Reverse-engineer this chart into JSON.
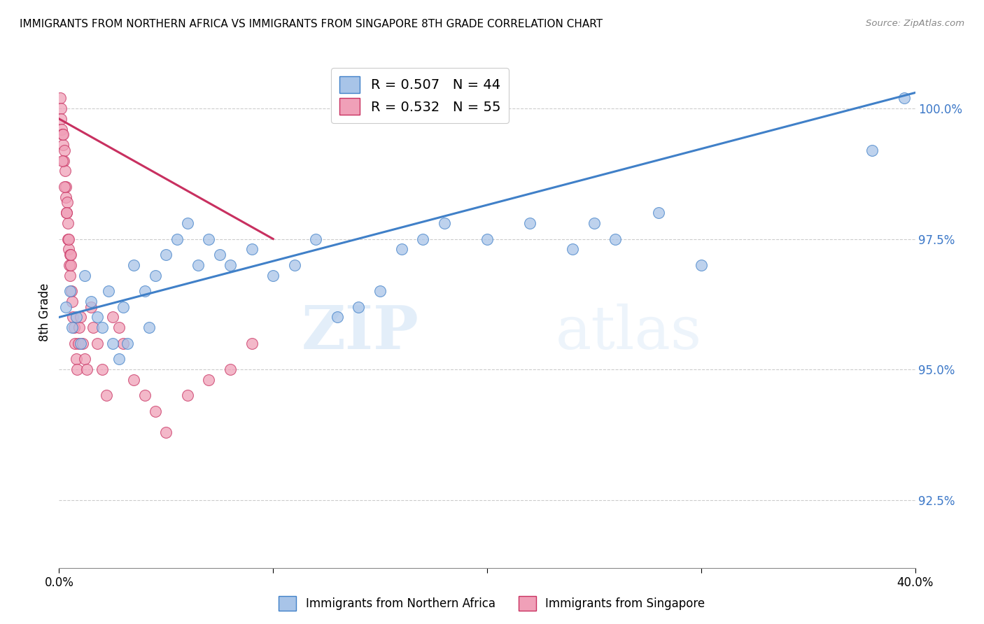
{
  "title": "IMMIGRANTS FROM NORTHERN AFRICA VS IMMIGRANTS FROM SINGAPORE 8TH GRADE CORRELATION CHART",
  "source": "Source: ZipAtlas.com",
  "ylabel": "8th Grade",
  "y_ticks": [
    92.5,
    95.0,
    97.5,
    100.0
  ],
  "y_tick_labels": [
    "92.5%",
    "95.0%",
    "97.5%",
    "100.0%"
  ],
  "x_min": 0.0,
  "x_max": 40.0,
  "y_min": 91.2,
  "y_max": 101.0,
  "legend_blue_label": "Immigrants from Northern Africa",
  "legend_pink_label": "Immigrants from Singapore",
  "blue_color": "#A8C4E8",
  "pink_color": "#F0A0B8",
  "blue_line_color": "#4080C8",
  "pink_line_color": "#C83060",
  "blue_line_x": [
    0.0,
    40.0
  ],
  "blue_line_y": [
    96.0,
    100.3
  ],
  "pink_line_x": [
    0.0,
    10.0
  ],
  "pink_line_y": [
    99.8,
    97.5
  ],
  "blue_scatter_x": [
    0.3,
    0.5,
    0.6,
    0.8,
    1.0,
    1.2,
    1.5,
    1.8,
    2.0,
    2.3,
    2.5,
    3.0,
    3.5,
    4.0,
    4.5,
    5.0,
    5.5,
    6.0,
    6.5,
    7.0,
    7.5,
    8.0,
    9.0,
    10.0,
    11.0,
    12.0,
    13.0,
    14.0,
    15.0,
    16.0,
    17.0,
    18.0,
    20.0,
    22.0,
    24.0,
    25.0,
    26.0,
    28.0,
    30.0,
    38.0,
    39.5,
    2.8,
    3.2,
    4.2
  ],
  "blue_scatter_y": [
    96.2,
    96.5,
    95.8,
    96.0,
    95.5,
    96.8,
    96.3,
    96.0,
    95.8,
    96.5,
    95.5,
    96.2,
    97.0,
    96.5,
    96.8,
    97.2,
    97.5,
    97.8,
    97.0,
    97.5,
    97.2,
    97.0,
    97.3,
    96.8,
    97.0,
    97.5,
    96.0,
    96.2,
    96.5,
    97.3,
    97.5,
    97.8,
    97.5,
    97.8,
    97.3,
    97.8,
    97.5,
    98.0,
    97.0,
    99.2,
    100.2,
    95.2,
    95.5,
    95.8
  ],
  "pink_scatter_x": [
    0.05,
    0.08,
    0.1,
    0.12,
    0.15,
    0.18,
    0.2,
    0.22,
    0.25,
    0.28,
    0.3,
    0.32,
    0.35,
    0.38,
    0.4,
    0.42,
    0.45,
    0.48,
    0.5,
    0.52,
    0.55,
    0.58,
    0.6,
    0.65,
    0.7,
    0.75,
    0.8,
    0.85,
    0.9,
    0.95,
    1.0,
    1.1,
    1.2,
    1.3,
    1.5,
    1.6,
    1.8,
    2.0,
    2.2,
    2.5,
    2.8,
    3.0,
    3.5,
    4.0,
    4.5,
    5.0,
    6.0,
    7.0,
    8.0,
    9.0,
    0.15,
    0.25,
    0.35,
    0.45,
    0.55
  ],
  "pink_scatter_y": [
    100.2,
    100.0,
    99.8,
    99.6,
    99.5,
    99.3,
    99.5,
    99.0,
    99.2,
    98.8,
    98.5,
    98.3,
    98.0,
    98.2,
    97.8,
    97.5,
    97.3,
    97.0,
    97.2,
    96.8,
    97.0,
    96.5,
    96.3,
    96.0,
    95.8,
    95.5,
    95.2,
    95.0,
    95.5,
    95.8,
    96.0,
    95.5,
    95.2,
    95.0,
    96.2,
    95.8,
    95.5,
    95.0,
    94.5,
    96.0,
    95.8,
    95.5,
    94.8,
    94.5,
    94.2,
    93.8,
    94.5,
    94.8,
    95.0,
    95.5,
    99.0,
    98.5,
    98.0,
    97.5,
    97.2
  ]
}
